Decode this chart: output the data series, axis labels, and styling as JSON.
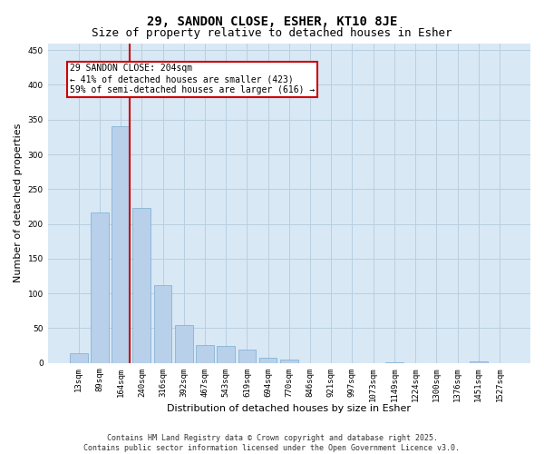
{
  "title1": "29, SANDON CLOSE, ESHER, KT10 8JE",
  "title2": "Size of property relative to detached houses in Esher",
  "xlabel": "Distribution of detached houses by size in Esher",
  "ylabel": "Number of detached properties",
  "categories": [
    "13sqm",
    "89sqm",
    "164sqm",
    "240sqm",
    "316sqm",
    "392sqm",
    "467sqm",
    "543sqm",
    "619sqm",
    "694sqm",
    "770sqm",
    "846sqm",
    "921sqm",
    "997sqm",
    "1073sqm",
    "1149sqm",
    "1224sqm",
    "1300sqm",
    "1376sqm",
    "1451sqm",
    "1527sqm"
  ],
  "values": [
    14,
    216,
    340,
    223,
    112,
    54,
    26,
    25,
    19,
    8,
    5,
    0,
    0,
    0,
    0,
    1,
    0,
    0,
    0,
    2,
    0
  ],
  "bar_color": "#b8d0ea",
  "bar_edge_color": "#7aacd0",
  "vline_color": "#cc0000",
  "annotation_text": "29 SANDON CLOSE: 204sqm\n← 41% of detached houses are smaller (423)\n59% of semi-detached houses are larger (616) →",
  "annotation_box_color": "#ffffff",
  "annotation_box_edge": "#cc0000",
  "ylim": [
    0,
    460
  ],
  "yticks": [
    0,
    50,
    100,
    150,
    200,
    250,
    300,
    350,
    400,
    450
  ],
  "background_color": "#ffffff",
  "plot_bg_color": "#d9e8f5",
  "grid_color": "#b8cfe0",
  "footer1": "Contains HM Land Registry data © Crown copyright and database right 2025.",
  "footer2": "Contains public sector information licensed under the Open Government Licence v3.0.",
  "title1_fontsize": 10,
  "title2_fontsize": 9,
  "tick_fontsize": 6.5,
  "ylabel_fontsize": 8,
  "xlabel_fontsize": 8,
  "footer_fontsize": 6,
  "ann_fontsize": 7
}
